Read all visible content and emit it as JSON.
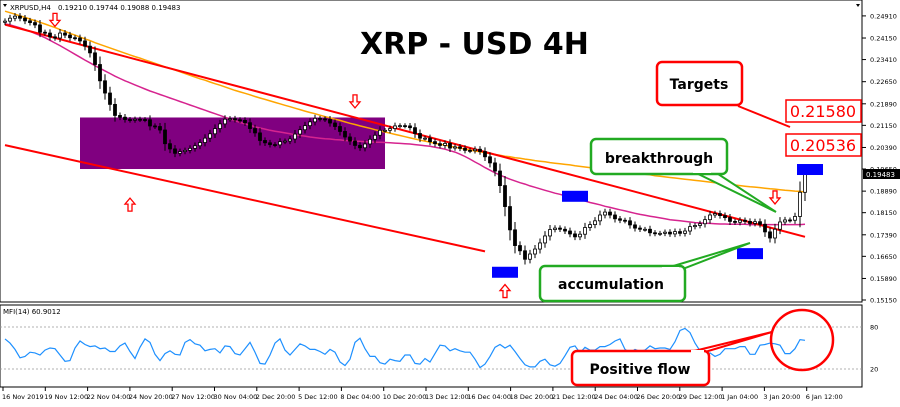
{
  "header": {
    "symbol": "XRPUSD,H4",
    "ohlc": "0.19210 0.19744 0.19088 0.19483",
    "title": "XRP - USD 4H"
  },
  "indicator": {
    "label": "MFI(14) 60.9012",
    "levels": [
      "80",
      "20"
    ]
  },
  "annotations": {
    "targets_label": "Targets",
    "target_1": "0.21580",
    "target_2": "0.20536",
    "breakthrough_label": "breakthrough",
    "accumulation_label": "accumulation",
    "positive_flow_label": "Positive flow",
    "current_price": "0.19483"
  },
  "colors": {
    "candle": "#000000",
    "trendline": "#ff0000",
    "ma_fast": "#d6248f",
    "ma_slow": "#ffa500",
    "box": "#800080",
    "blue_marker": "#0000ff",
    "mfi_line": "#1e90ff",
    "callout_red": "#ff0000",
    "callout_green": "#22aa22"
  },
  "chart_data": {
    "type": "candlestick",
    "title": "XRP - USD 4H",
    "y_ticks": [
      "0.24910",
      "0.24150",
      "0.23410",
      "0.22650",
      "0.21890",
      "0.21150",
      "0.20390",
      "0.19650",
      "0.18890",
      "0.18150",
      "0.17390",
      "0.16650",
      "0.15890",
      "0.15150"
    ],
    "x_ticks": [
      "16 Nov 2019",
      "19 Nov 12:00",
      "22 Nov 04:00",
      "24 Nov 20:00",
      "27 Nov 12:00",
      "30 Nov 04:00",
      "2 Dec 20:00",
      "5 Dec 12:00",
      "8 Dec 04:00",
      "10 Dec 20:00",
      "13 Dec 12:00",
      "16 Dec 04:00",
      "18 Dec 20:00",
      "21 Dec 12:00",
      "24 Dec 04:00",
      "26 Dec 20:00",
      "29 Dec 12:00",
      "1 Jan 04:00",
      "3 Jan 20:00",
      "6 Jan 12:00"
    ],
    "ylim": [
      0.1515,
      0.2525
    ],
    "n_bars": 161,
    "close": [
      0.2473,
      0.2483,
      0.249,
      0.2483,
      0.2474,
      0.2468,
      0.246,
      0.2435,
      0.2432,
      0.2419,
      0.2415,
      0.2432,
      0.2425,
      0.2416,
      0.2415,
      0.2405,
      0.2387,
      0.2364,
      0.2324,
      0.2268,
      0.2226,
      0.2187,
      0.2149,
      0.2143,
      0.2135,
      0.2133,
      0.2136,
      0.2135,
      0.2134,
      0.2113,
      0.2111,
      0.2099,
      0.2052,
      0.2034,
      0.2019,
      0.2025,
      0.2029,
      0.2036,
      0.2045,
      0.2056,
      0.2071,
      0.2086,
      0.2104,
      0.212,
      0.2136,
      0.2138,
      0.2134,
      0.2132,
      0.2124,
      0.2104,
      0.2089,
      0.2063,
      0.2055,
      0.2049,
      0.2048,
      0.2059,
      0.2061,
      0.2068,
      0.2085,
      0.21,
      0.2114,
      0.2127,
      0.2139,
      0.2137,
      0.2135,
      0.2123,
      0.2111,
      0.2094,
      0.2075,
      0.2061,
      0.2046,
      0.2038,
      0.2051,
      0.2067,
      0.2081,
      0.2098,
      0.2098,
      0.2104,
      0.2113,
      0.2114,
      0.2113,
      0.2107,
      0.2087,
      0.2071,
      0.2071,
      0.2059,
      0.2052,
      0.2046,
      0.2053,
      0.2037,
      0.2041,
      0.2036,
      0.2029,
      0.2028,
      0.2033,
      0.2025,
      0.2007,
      0.1986,
      0.1958,
      0.1908,
      0.1836,
      0.1756,
      0.1702,
      0.1684,
      0.1655,
      0.1673,
      0.169,
      0.1711,
      0.1735,
      0.1757,
      0.1762,
      0.1758,
      0.1752,
      0.1742,
      0.1732,
      0.1741,
      0.1764,
      0.1774,
      0.1787,
      0.1807,
      0.1817,
      0.1807,
      0.1794,
      0.1789,
      0.1787,
      0.1773,
      0.1762,
      0.1758,
      0.1758,
      0.1746,
      0.1743,
      0.1744,
      0.1748,
      0.1742,
      0.175,
      0.1744,
      0.1752,
      0.1767,
      0.1771,
      0.1777,
      0.1791,
      0.1807,
      0.1812,
      0.1805,
      0.1798,
      0.1785,
      0.1782,
      0.1789,
      0.1785,
      0.1778,
      0.1784,
      0.1775,
      0.1749,
      0.1728,
      0.1758,
      0.1783,
      0.179,
      0.1789,
      0.1802,
      0.1885,
      0.1948
    ],
    "ma_slow": [
      0.2507,
      0.2502,
      0.2497,
      0.2491,
      0.2486,
      0.248,
      0.2475,
      0.2469,
      0.2463,
      0.2457,
      0.2451,
      0.2444,
      0.2438,
      0.2431,
      0.2425,
      0.2418,
      0.2412,
      0.2406,
      0.2399,
      0.2393,
      0.2387,
      0.2381,
      0.2375,
      0.2369,
      0.2363,
      0.2357,
      0.2351,
      0.2346,
      0.234,
      0.2334,
      0.2328,
      0.2322,
      0.2316,
      0.2311,
      0.2305,
      0.2299,
      0.2293,
      0.2287,
      0.2281,
      0.2275,
      0.227,
      0.2264,
      0.2258,
      0.2253,
      0.2247,
      0.2241,
      0.2235,
      0.223,
      0.2225,
      0.222,
      0.2214,
      0.2209,
      0.2204,
      0.2199,
      0.2194,
      0.2189,
      0.2184,
      0.2179,
      0.2174,
      0.2169,
      0.2164,
      0.2159,
      0.2155,
      0.215,
      0.2145,
      0.2141,
      0.2136,
      0.2132,
      0.2127,
      0.2122,
      0.2118,
      0.2113,
      0.2109,
      0.2105,
      0.21,
      0.2096,
      0.2092,
      0.2088,
      0.2084,
      0.208,
      0.2076,
      0.2072,
      0.2068,
      0.2064,
      0.2061,
      0.2057,
      0.2053,
      0.205,
      0.2047,
      0.2043,
      0.204,
      0.2037,
      0.2033,
      0.203,
      0.2027,
      0.2024,
      0.2021,
      0.2018,
      0.2015,
      0.2012,
      0.2009,
      0.2007,
      0.2004,
      0.2002,
      0.1999,
      0.1997,
      0.1994,
      0.1992,
      0.199,
      0.1987,
      0.1985,
      0.1983,
      0.1981,
      0.1979,
      0.1976,
      0.1974,
      0.1972,
      0.197,
      0.1968,
      0.1966,
      0.1964,
      0.1962,
      0.1959,
      0.1957,
      0.1955,
      0.1953,
      0.1951,
      0.1949,
      0.1947,
      0.1945,
      0.1942,
      0.194,
      0.1938,
      0.1936,
      0.1934,
      0.1932,
      0.193,
      0.1928,
      0.1926,
      0.1924,
      0.1922,
      0.192,
      0.1918,
      0.1916,
      0.1914,
      0.1912,
      0.191,
      0.1908,
      0.1906,
      0.1904,
      0.1903,
      0.1901,
      0.1899,
      0.1897,
      0.1896,
      0.1894,
      0.1892,
      0.1891,
      0.1889,
      0.1888,
      0.1886
    ],
    "ma_fast": [
      0.2464,
      0.246,
      0.2455,
      0.245,
      0.2444,
      0.2438,
      0.2431,
      0.2424,
      0.2416,
      0.2407,
      0.2398,
      0.2389,
      0.2379,
      0.2369,
      0.2359,
      0.2349,
      0.2339,
      0.233,
      0.232,
      0.2311,
      0.2302,
      0.2293,
      0.2284,
      0.2276,
      0.2268,
      0.2261,
      0.2254,
      0.2247,
      0.224,
      0.2233,
      0.2227,
      0.2221,
      0.2215,
      0.2209,
      0.2203,
      0.2197,
      0.2191,
      0.2185,
      0.2179,
      0.2173,
      0.2167,
      0.2161,
      0.2155,
      0.2149,
      0.2143,
      0.2137,
      0.2131,
      0.2125,
      0.212,
      0.2115,
      0.211,
      0.2106,
      0.2102,
      0.2098,
      0.2095,
      0.2092,
      0.2089,
      0.2086,
      0.2083,
      0.208,
      0.2078,
      0.2075,
      0.2073,
      0.2071,
      0.2069,
      0.2068,
      0.2066,
      0.2065,
      0.2063,
      0.2062,
      0.2061,
      0.206,
      0.2059,
      0.2058,
      0.2057,
      0.2057,
      0.2056,
      0.2055,
      0.2054,
      0.2053,
      0.2052,
      0.2051,
      0.2049,
      0.2047,
      0.2045,
      0.2043,
      0.204,
      0.2037,
      0.2033,
      0.2028,
      0.2023,
      0.2016,
      0.2008,
      0.1999,
      0.1989,
      0.198,
      0.197,
      0.1961,
      0.1952,
      0.1944,
      0.1937,
      0.193,
      0.1924,
      0.1918,
      0.1913,
      0.1907,
      0.1902,
      0.1897,
      0.1892,
      0.1887,
      0.1882,
      0.1878,
      0.1873,
      0.1868,
      0.1864,
      0.1859,
      0.1855,
      0.185,
      0.1846,
      0.1842,
      0.1837,
      0.1833,
      0.1829,
      0.1825,
      0.1821,
      0.1817,
      0.1813,
      0.1809,
      0.1806,
      0.1803,
      0.18,
      0.1797,
      0.1794,
      0.1791,
      0.1789,
      0.1787,
      0.1785,
      0.1783,
      0.1781,
      0.178,
      0.1779,
      0.1778,
      0.1777,
      0.1776,
      0.1776,
      0.1775,
      0.1775,
      0.1775,
      0.1775,
      0.1774,
      0.1774,
      0.1774,
      0.1774,
      0.1774,
      0.1774,
      0.1774,
      0.1774,
      0.1774,
      0.1774,
      0.1774,
      0.1775
    ],
    "trend_upper": [
      [
        0,
        0.2461
      ],
      [
        160,
        0.1732
      ]
    ],
    "trend_lower": [
      [
        0,
        0.2047
      ],
      [
        96,
        0.1682
      ]
    ],
    "box": {
      "x0": 15,
      "x1": 76,
      "y_top": 0.2142,
      "y_bottom": 0.1965
    },
    "mfi": {
      "label": "MFI(14) 60.9012",
      "ylim": [
        0,
        100
      ],
      "levels": [
        80,
        20
      ],
      "values": [
        63,
        57,
        48,
        36,
        38,
        44,
        43,
        40,
        47,
        50,
        49,
        40,
        31,
        32,
        50,
        60,
        55,
        52,
        53,
        49,
        50,
        45,
        45,
        53,
        57,
        45,
        35,
        51,
        63,
        58,
        41,
        32,
        42,
        46,
        41,
        40,
        58,
        62,
        56,
        54,
        46,
        48,
        49,
        43,
        53,
        52,
        42,
        40,
        49,
        58,
        44,
        28,
        27,
        40,
        57,
        63,
        47,
        40,
        48,
        56,
        53,
        48,
        48,
        45,
        41,
        48,
        44,
        30,
        25,
        34,
        58,
        64,
        49,
        38,
        38,
        29,
        27,
        34,
        32,
        31,
        40,
        40,
        28,
        27,
        35,
        30,
        42,
        54,
        53,
        46,
        49,
        46,
        44,
        44,
        34,
        22,
        27,
        38,
        51,
        55,
        50,
        54,
        45,
        35,
        26,
        23,
        23,
        31,
        34,
        26,
        24,
        28,
        39,
        51,
        53,
        43,
        51,
        47,
        47,
        52,
        52,
        55,
        60,
        63,
        48,
        43,
        48,
        45,
        47,
        53,
        49,
        50,
        50,
        48,
        59,
        75,
        78,
        72,
        57,
        46,
        41,
        43,
        38,
        41,
        49,
        49,
        49,
        52,
        52,
        41,
        41,
        54,
        55,
        57,
        56,
        54,
        42,
        42,
        49,
        62,
        61
      ]
    }
  }
}
